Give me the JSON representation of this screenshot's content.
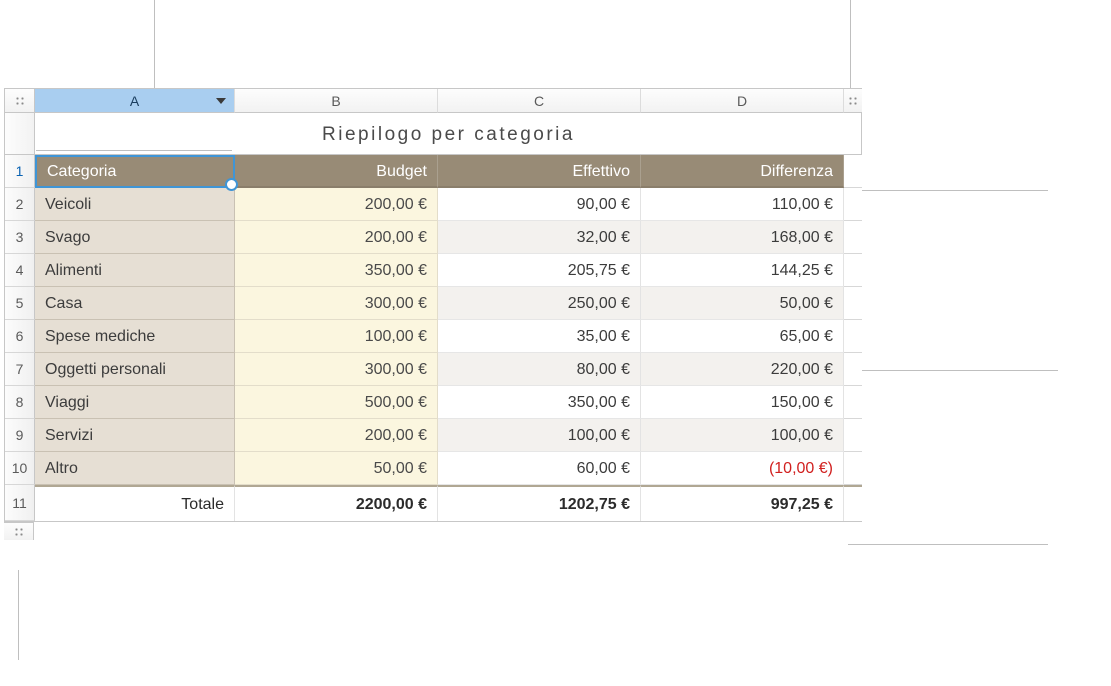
{
  "title": "Riepilogo per categoria",
  "columns": {
    "letters": [
      "A",
      "B",
      "C",
      "D"
    ],
    "selected_index": 0
  },
  "headers": {
    "category": "Categoria",
    "budget": "Budget",
    "actual": "Effettivo",
    "diff": "Differenza"
  },
  "rows": [
    {
      "n": "1"
    },
    {
      "n": "2",
      "cat": "Veicoli",
      "budget": "200,00 €",
      "actual": "90,00 €",
      "diff": "110,00 €"
    },
    {
      "n": "3",
      "cat": "Svago",
      "budget": "200,00 €",
      "actual": "32,00 €",
      "diff": "168,00 €"
    },
    {
      "n": "4",
      "cat": "Alimenti",
      "budget": "350,00 €",
      "actual": "205,75 €",
      "diff": "144,25 €"
    },
    {
      "n": "5",
      "cat": "Casa",
      "budget": "300,00 €",
      "actual": "250,00 €",
      "diff": "50,00 €"
    },
    {
      "n": "6",
      "cat": "Spese mediche",
      "budget": "100,00 €",
      "actual": "35,00 €",
      "diff": "65,00 €"
    },
    {
      "n": "7",
      "cat": "Oggetti personali",
      "budget": "300,00 €",
      "actual": "80,00 €",
      "diff": "220,00 €"
    },
    {
      "n": "8",
      "cat": "Viaggi",
      "budget": "500,00 €",
      "actual": "350,00 €",
      "diff": "150,00 €"
    },
    {
      "n": "9",
      "cat": "Servizi",
      "budget": "200,00 €",
      "actual": "100,00 €",
      "diff": "100,00 €"
    },
    {
      "n": "10",
      "cat": "Altro",
      "budget": "50,00 €",
      "actual": "60,00 €",
      "diff": "(10,00 €)",
      "neg": true
    }
  ],
  "footer": {
    "n": "11",
    "label": "Totale",
    "budget": "2200,00 €",
    "actual": "1202,75 €",
    "diff": "997,25 €"
  },
  "colors": {
    "header_bg": "#988b76",
    "cat_bg": "#e6dfd4",
    "budget_bg": "#fbf6df",
    "alt_bg": "#f3f1ee",
    "sel_col_bg": "#a9cef0",
    "sel_border": "#3f95d6",
    "negative": "#d1201f"
  }
}
